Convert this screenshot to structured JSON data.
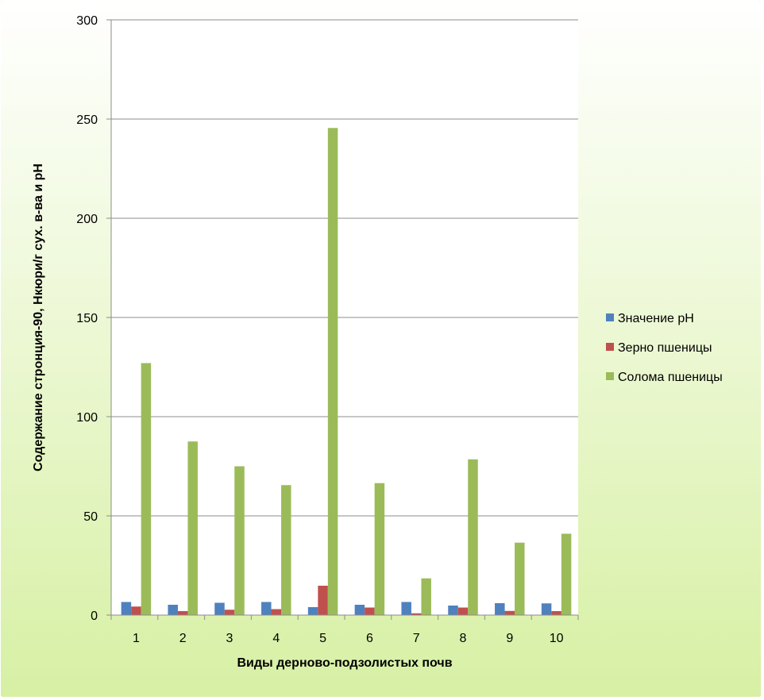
{
  "chart_data": {
    "type": "bar",
    "categories": [
      "1",
      "2",
      "3",
      "4",
      "5",
      "6",
      "7",
      "8",
      "9",
      "10"
    ],
    "series": [
      {
        "name": "Значение pH",
        "color": "#4f81bd",
        "values": [
          6.6,
          5.2,
          6.2,
          6.6,
          4.0,
          5.2,
          6.6,
          4.8,
          6.0,
          5.9
        ]
      },
      {
        "name": "Зерно пшеницы",
        "color": "#c0504d",
        "values": [
          4.3,
          2.0,
          2.7,
          3.0,
          14.8,
          3.8,
          0.9,
          3.8,
          2.1,
          2.0
        ]
      },
      {
        "name": "Солома пшеницы",
        "color": "#9bbb59",
        "values": [
          127,
          87.5,
          75,
          65.5,
          245.5,
          66.5,
          18.5,
          78.5,
          36.5,
          41
        ]
      }
    ],
    "yticks": [
      0,
      50,
      100,
      150,
      200,
      250,
      300
    ],
    "ylim": [
      0,
      300
    ],
    "xlabel": "Виды дерново-подзолистых почв",
    "ylabel": "Содержание стронция-90, Нкюри/г сух. в-ва и pH",
    "grid": true,
    "legend": "right",
    "background": "#ffffff",
    "page_gradient": [
      "#ffffff",
      "#d7f0a4"
    ],
    "frame_color": "#9bbb59"
  }
}
